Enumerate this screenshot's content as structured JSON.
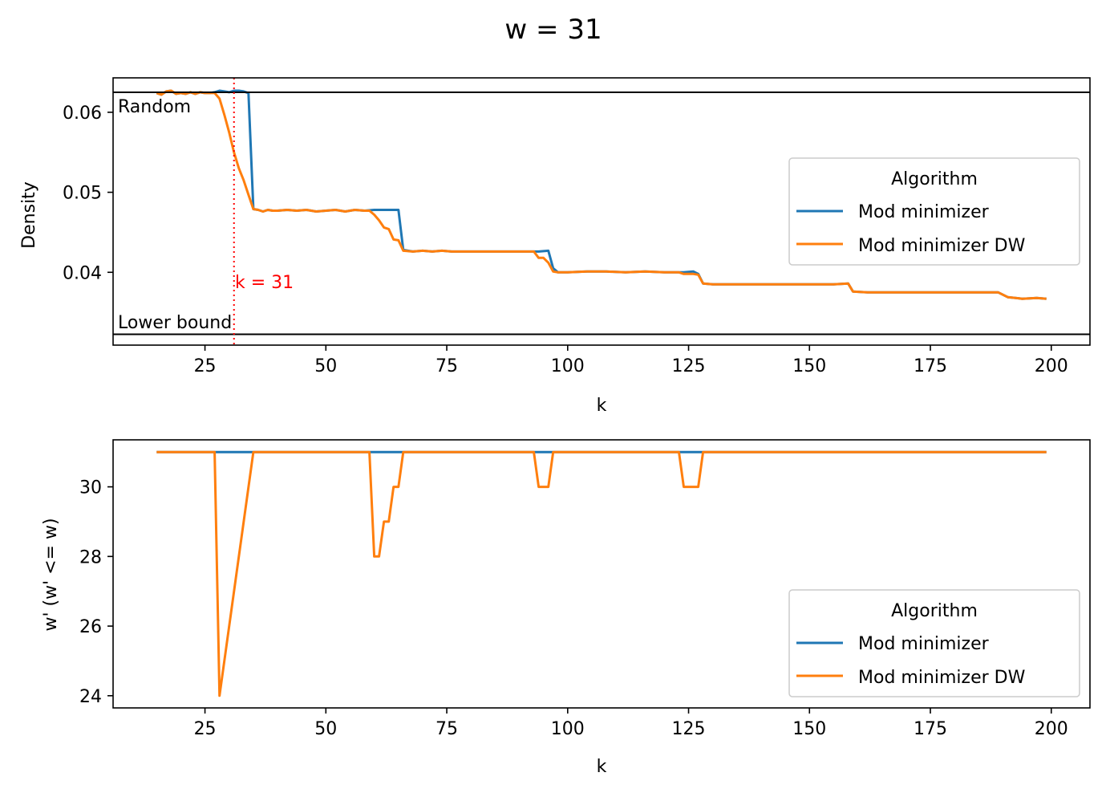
{
  "figure": {
    "suptitle": "w = 31"
  },
  "colors": {
    "blue": "#1f77b4",
    "orange": "#ff7f0e",
    "red": "#ff0000",
    "black": "#000000"
  },
  "chart_data": [
    {
      "type": "line",
      "xlabel": "k",
      "ylabel": "Density",
      "xlim": [
        6,
        208
      ],
      "ylim": [
        0.0309,
        0.0643
      ],
      "xticks": [
        25,
        50,
        75,
        100,
        125,
        150,
        175,
        200
      ],
      "xtick_labels": [
        "25",
        "50",
        "75",
        "100",
        "125",
        "150",
        "175",
        "200"
      ],
      "yticks": [
        0.04,
        0.05,
        0.06
      ],
      "ytick_labels": [
        "0.04",
        "0.05",
        "0.06"
      ],
      "hlines": [
        {
          "y": 0.0625,
          "label": "Random"
        },
        {
          "y": 0.03225,
          "label": "Lower bound"
        }
      ],
      "vline": {
        "x": 31,
        "label": "k = 31"
      },
      "legend": {
        "title": "Algorithm",
        "position": "center-right"
      },
      "series": [
        {
          "name": "Mod minimizer",
          "color": "#1f77b4",
          "points": [
            [
              15,
              0.0624
            ],
            [
              16,
              0.0622
            ],
            [
              17,
              0.0626
            ],
            [
              18,
              0.0627
            ],
            [
              19,
              0.0623
            ],
            [
              20,
              0.0624
            ],
            [
              21,
              0.0623
            ],
            [
              22,
              0.0625
            ],
            [
              23,
              0.0623
            ],
            [
              24,
              0.0625
            ],
            [
              25,
              0.0624
            ],
            [
              26,
              0.0624
            ],
            [
              27,
              0.0625
            ],
            [
              28,
              0.0627
            ],
            [
              29,
              0.0626
            ],
            [
              30,
              0.0625
            ],
            [
              31,
              0.0627
            ],
            [
              32,
              0.0627
            ],
            [
              33,
              0.0626
            ],
            [
              34,
              0.0624
            ],
            [
              35,
              0.0479
            ],
            [
              36,
              0.0478
            ],
            [
              37,
              0.0476
            ],
            [
              38,
              0.0478
            ],
            [
              39,
              0.0477
            ],
            [
              40,
              0.0477
            ],
            [
              42,
              0.0478
            ],
            [
              44,
              0.0477
            ],
            [
              46,
              0.0478
            ],
            [
              48,
              0.0476
            ],
            [
              50,
              0.0477
            ],
            [
              52,
              0.0478
            ],
            [
              54,
              0.0476
            ],
            [
              56,
              0.0478
            ],
            [
              58,
              0.0477
            ],
            [
              60,
              0.0478
            ],
            [
              62,
              0.0478
            ],
            [
              64,
              0.0478
            ],
            [
              65,
              0.0478
            ],
            [
              66,
              0.0428
            ],
            [
              68,
              0.0426
            ],
            [
              70,
              0.0427
            ],
            [
              72,
              0.0426
            ],
            [
              74,
              0.0427
            ],
            [
              76,
              0.0426
            ],
            [
              80,
              0.0426
            ],
            [
              84,
              0.0426
            ],
            [
              88,
              0.0426
            ],
            [
              92,
              0.0426
            ],
            [
              94,
              0.0426
            ],
            [
              96,
              0.0427
            ],
            [
              97,
              0.0405
            ],
            [
              98,
              0.04
            ],
            [
              100,
              0.04
            ],
            [
              104,
              0.0401
            ],
            [
              108,
              0.0401
            ],
            [
              112,
              0.04
            ],
            [
              116,
              0.0401
            ],
            [
              120,
              0.04
            ],
            [
              124,
              0.04
            ],
            [
              126,
              0.0401
            ],
            [
              127,
              0.0398
            ],
            [
              128,
              0.0386
            ],
            [
              130,
              0.0385
            ],
            [
              135,
              0.0385
            ],
            [
              140,
              0.0385
            ],
            [
              145,
              0.0385
            ],
            [
              150,
              0.0385
            ],
            [
              155,
              0.0385
            ],
            [
              158,
              0.0386
            ],
            [
              159,
              0.0376
            ],
            [
              162,
              0.0375
            ],
            [
              166,
              0.0375
            ],
            [
              170,
              0.0375
            ],
            [
              175,
              0.0375
            ],
            [
              180,
              0.0375
            ],
            [
              185,
              0.0375
            ],
            [
              189,
              0.0375
            ],
            [
              191,
              0.0369
            ],
            [
              194,
              0.0367
            ],
            [
              197,
              0.0368
            ],
            [
              199,
              0.0367
            ]
          ]
        },
        {
          "name": "Mod minimizer DW",
          "color": "#ff7f0e",
          "points": [
            [
              15,
              0.0624
            ],
            [
              16,
              0.0622
            ],
            [
              17,
              0.0626
            ],
            [
              18,
              0.0627
            ],
            [
              19,
              0.0623
            ],
            [
              20,
              0.0624
            ],
            [
              21,
              0.0623
            ],
            [
              22,
              0.0625
            ],
            [
              23,
              0.0623
            ],
            [
              24,
              0.0625
            ],
            [
              25,
              0.0624
            ],
            [
              26,
              0.0624
            ],
            [
              27,
              0.0624
            ],
            [
              28,
              0.0617
            ],
            [
              29,
              0.0597
            ],
            [
              30,
              0.0575
            ],
            [
              31,
              0.055
            ],
            [
              32,
              0.053
            ],
            [
              33,
              0.0515
            ],
            [
              34,
              0.0497
            ],
            [
              35,
              0.0479
            ],
            [
              36,
              0.0478
            ],
            [
              37,
              0.0476
            ],
            [
              38,
              0.0478
            ],
            [
              39,
              0.0477
            ],
            [
              40,
              0.0477
            ],
            [
              42,
              0.0478
            ],
            [
              44,
              0.0477
            ],
            [
              46,
              0.0478
            ],
            [
              48,
              0.0476
            ],
            [
              50,
              0.0477
            ],
            [
              52,
              0.0478
            ],
            [
              54,
              0.0476
            ],
            [
              56,
              0.0478
            ],
            [
              58,
              0.0477
            ],
            [
              59,
              0.0477
            ],
            [
              60,
              0.0472
            ],
            [
              61,
              0.0465
            ],
            [
              62,
              0.0456
            ],
            [
              63,
              0.0454
            ],
            [
              64,
              0.0441
            ],
            [
              65,
              0.044
            ],
            [
              66,
              0.0427
            ],
            [
              68,
              0.0426
            ],
            [
              70,
              0.0427
            ],
            [
              72,
              0.0426
            ],
            [
              74,
              0.0427
            ],
            [
              76,
              0.0426
            ],
            [
              80,
              0.0426
            ],
            [
              84,
              0.0426
            ],
            [
              88,
              0.0426
            ],
            [
              92,
              0.0426
            ],
            [
              93,
              0.0426
            ],
            [
              94,
              0.0418
            ],
            [
              95,
              0.0418
            ],
            [
              96,
              0.0412
            ],
            [
              97,
              0.0401
            ],
            [
              98,
              0.04
            ],
            [
              100,
              0.04
            ],
            [
              104,
              0.0401
            ],
            [
              108,
              0.0401
            ],
            [
              112,
              0.04
            ],
            [
              116,
              0.0401
            ],
            [
              120,
              0.04
            ],
            [
              123,
              0.04
            ],
            [
              124,
              0.0398
            ],
            [
              126,
              0.0398
            ],
            [
              127,
              0.0397
            ],
            [
              128,
              0.0386
            ],
            [
              130,
              0.0385
            ],
            [
              135,
              0.0385
            ],
            [
              140,
              0.0385
            ],
            [
              145,
              0.0385
            ],
            [
              150,
              0.0385
            ],
            [
              155,
              0.0385
            ],
            [
              158,
              0.0386
            ],
            [
              159,
              0.0376
            ],
            [
              162,
              0.0375
            ],
            [
              166,
              0.0375
            ],
            [
              170,
              0.0375
            ],
            [
              175,
              0.0375
            ],
            [
              180,
              0.0375
            ],
            [
              185,
              0.0375
            ],
            [
              189,
              0.0375
            ],
            [
              191,
              0.0369
            ],
            [
              194,
              0.0367
            ],
            [
              197,
              0.0368
            ],
            [
              199,
              0.0367
            ]
          ]
        }
      ]
    },
    {
      "type": "line",
      "xlabel": "k",
      "ylabel": "w' (w' <= w)",
      "xlim": [
        6,
        208
      ],
      "ylim": [
        23.65,
        31.35
      ],
      "xticks": [
        25,
        50,
        75,
        100,
        125,
        150,
        175,
        200
      ],
      "xtick_labels": [
        "25",
        "50",
        "75",
        "100",
        "125",
        "150",
        "175",
        "200"
      ],
      "yticks": [
        24,
        26,
        28,
        30
      ],
      "ytick_labels": [
        "24",
        "26",
        "28",
        "30"
      ],
      "legend": {
        "title": "Algorithm",
        "position": "lower-right"
      },
      "series": [
        {
          "name": "Mod minimizer",
          "color": "#1f77b4",
          "points": [
            [
              15,
              31
            ],
            [
              199,
              31
            ]
          ]
        },
        {
          "name": "Mod minimizer DW",
          "color": "#ff7f0e",
          "points": [
            [
              15,
              31
            ],
            [
              27,
              31
            ],
            [
              28,
              24
            ],
            [
              35,
              31
            ],
            [
              59,
              31
            ],
            [
              60,
              28
            ],
            [
              61,
              28
            ],
            [
              62,
              29
            ],
            [
              63,
              29
            ],
            [
              64,
              30
            ],
            [
              65,
              30
            ],
            [
              66,
              31
            ],
            [
              93,
              31
            ],
            [
              94,
              30
            ],
            [
              96,
              30
            ],
            [
              97,
              31
            ],
            [
              123,
              31
            ],
            [
              124,
              30
            ],
            [
              127,
              30
            ],
            [
              128,
              31
            ],
            [
              199,
              31
            ]
          ]
        }
      ]
    }
  ]
}
